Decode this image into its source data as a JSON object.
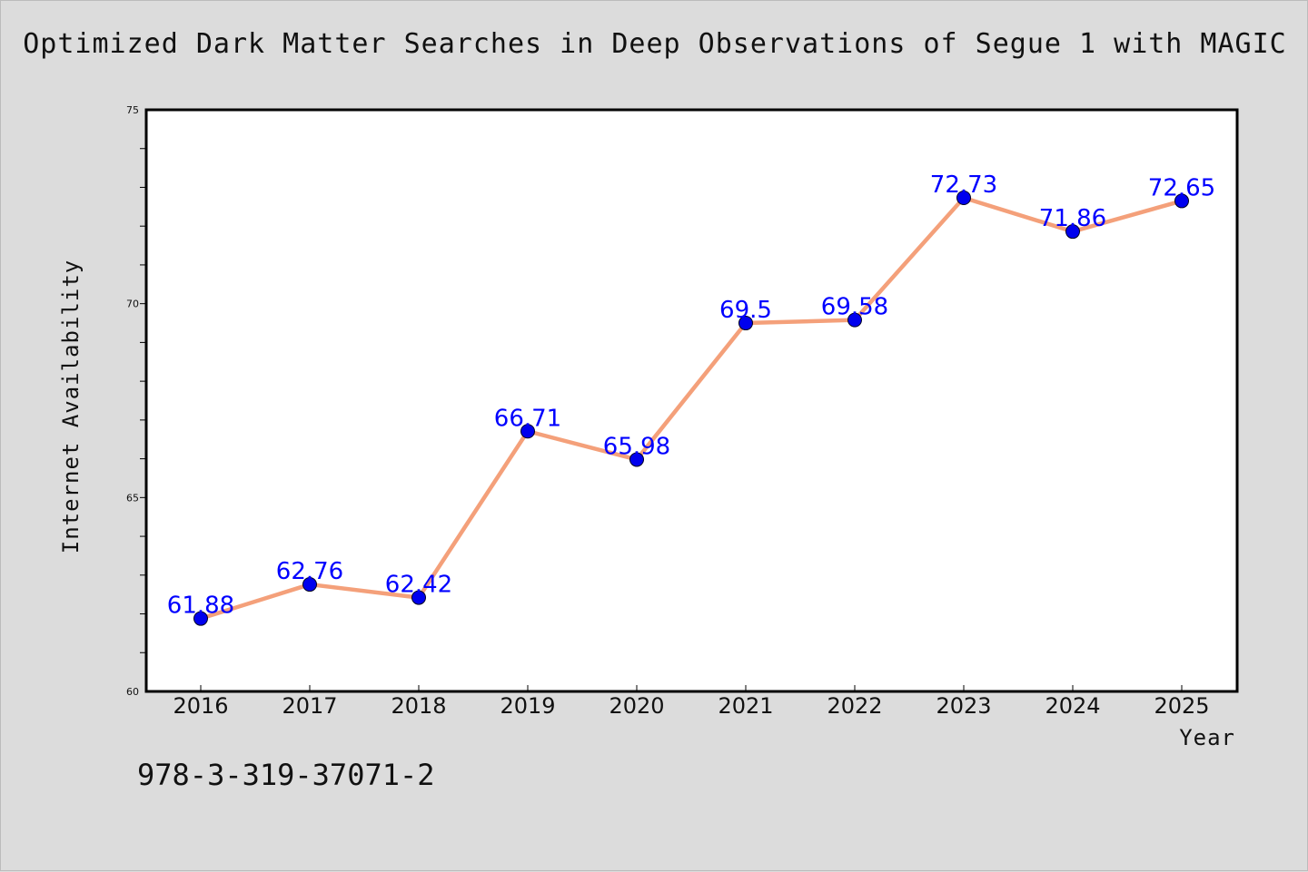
{
  "chart_data": {
    "type": "line",
    "title": "Optimized Dark Matter Searches in Deep Observations of Segue 1 with MAGIC",
    "xlabel": "Year",
    "ylabel": "Internet Availability",
    "categories": [
      "2016",
      "2017",
      "2018",
      "2019",
      "2020",
      "2021",
      "2022",
      "2023",
      "2024",
      "2025"
    ],
    "series": [
      {
        "values": [
          61.88,
          62.76,
          62.42,
          66.71,
          65.98,
          69.5,
          69.58,
          72.73,
          71.86,
          72.65
        ],
        "labels": [
          "61.88",
          "62.76",
          "62.42",
          "66.71",
          "65.98",
          "69.5",
          "69.58",
          "72.73",
          "71.86",
          "72.65"
        ],
        "line_color": "#f4a07a",
        "marker_color": "#0000ee"
      }
    ],
    "ylim": [
      60,
      75
    ],
    "yticks": [
      "60",
      "65",
      "70",
      "75"
    ],
    "y_minor_step": 1,
    "grid": false,
    "legend": "none"
  },
  "footer": {
    "text": "978-3-319-37071-2"
  }
}
